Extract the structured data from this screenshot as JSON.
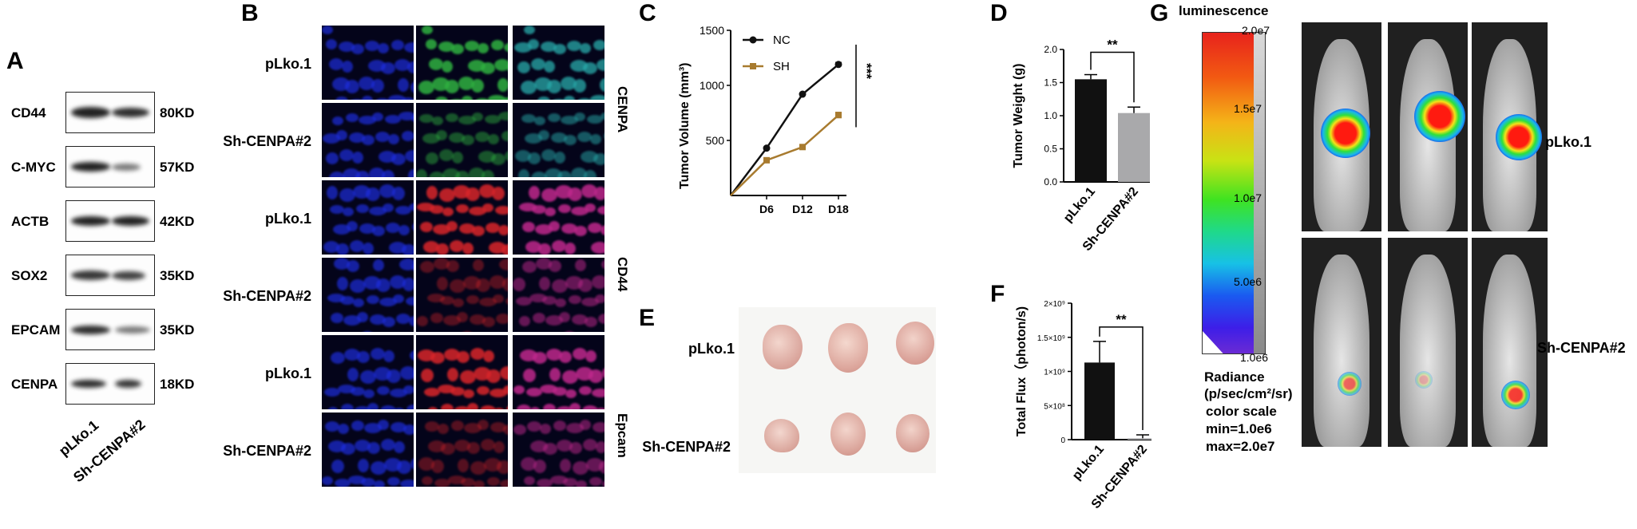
{
  "panels": {
    "A": "A",
    "B": "B",
    "C": "C",
    "D": "D",
    "E": "E",
    "F": "F",
    "G": "G"
  },
  "western": {
    "rows": [
      {
        "protein": "CD44",
        "size": "80KD"
      },
      {
        "protein": "C-MYC",
        "size": "57KD"
      },
      {
        "protein": "ACTB",
        "size": "42KD"
      },
      {
        "protein": "SOX2",
        "size": "35KD"
      },
      {
        "protein": "EPCAM",
        "size": "35KD"
      },
      {
        "protein": "CENPA",
        "size": "18KD"
      }
    ],
    "lanes": [
      "pLko.1",
      "Sh-CENPA#2"
    ]
  },
  "if_panel": {
    "rows": [
      "pLko.1",
      "Sh-CENPA#2",
      "pLko.1",
      "Sh-CENPA#2",
      "pLko.1",
      "Sh-CENPA#2"
    ],
    "markers": [
      "CENPA",
      "CD44",
      "Epcam"
    ]
  },
  "colors": {
    "nc": "#111111",
    "sh": "#a87b2f",
    "bar_pl": "#111111",
    "bar_sh": "#a9a9ab",
    "dapi": "#1e2ee0",
    "cenpa": "#2fb040",
    "red": "#d8252a"
  },
  "chart_data": [
    {
      "id": "C",
      "type": "line",
      "ylabel": "Tumor Volume (mm³)",
      "x_ticks": [
        "D6",
        "D12",
        "D18"
      ],
      "x": [
        0,
        6,
        12,
        18
      ],
      "yticks": [
        "500",
        "1000",
        "1500"
      ],
      "ylim": [
        0,
        1500
      ],
      "series": [
        {
          "name": "NC",
          "values": [
            0,
            430,
            920,
            1190
          ]
        },
        {
          "name": "SH",
          "values": [
            0,
            320,
            440,
            730
          ]
        }
      ],
      "annotation": "***",
      "legend": "top-left"
    },
    {
      "id": "D",
      "type": "bar",
      "ylabel": "Tumor Weight (g)",
      "categories": [
        "pLko.1",
        "Sh-CENPA#2"
      ],
      "values": [
        1.55,
        1.04
      ],
      "errors": [
        0.07,
        0.09
      ],
      "yticks": [
        "0.0",
        "0.5",
        "1.0",
        "1.5",
        "2.0"
      ],
      "ylim": [
        0,
        2.0
      ],
      "annotation": "**"
    },
    {
      "id": "F",
      "type": "bar",
      "ylabel": "Total Flux（photon/s)",
      "categories": [
        "pLko.1",
        "Sh-CENPA#2"
      ],
      "values": [
        1130000000,
        20000000
      ],
      "errors": [
        310000000,
        50000000
      ],
      "yticks": [
        "0",
        "5×10⁸",
        "1×10⁹",
        "1.5×10⁹",
        "2×10⁹"
      ],
      "ylim": [
        0,
        2000000000
      ],
      "annotation": "**"
    }
  ],
  "tumors": {
    "rows": [
      "pLko.1",
      "Sh-CENPA#2"
    ]
  },
  "luminescence": {
    "title": "luminescence",
    "ticks": [
      "2.0e7",
      "1.5e7",
      "1.0e7",
      "5.0e6",
      "1.0e6"
    ],
    "radiance": "Radiance",
    "units": "(p/sec/cm²/sr)",
    "color_scale": "color scale",
    "min": "min=1.0e6",
    "max": "max=2.0e7",
    "rows": [
      "pLko.1",
      "Sh-CENPA#2"
    ]
  }
}
